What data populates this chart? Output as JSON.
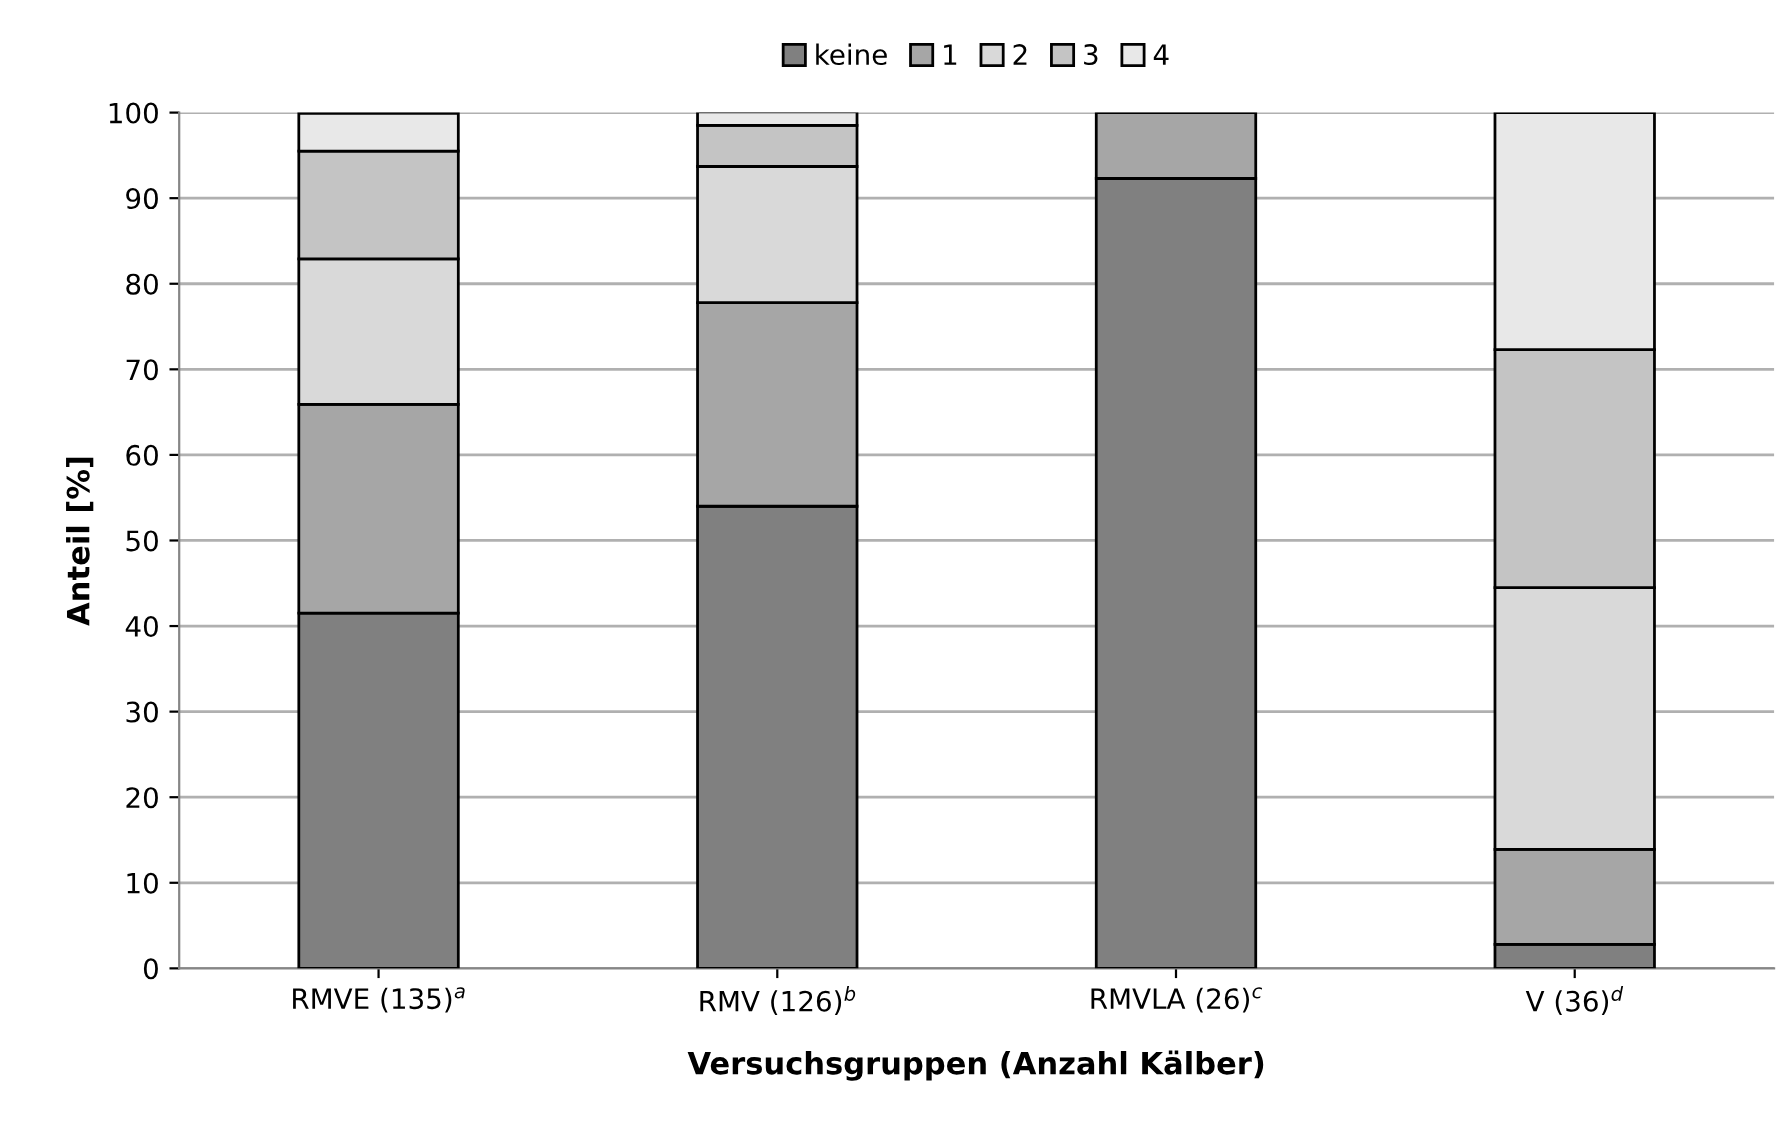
{
  "chart_data": {
    "type": "bar",
    "stacked": true,
    "xlabel": "Versuchsgruppen (Anzahl Kälber)",
    "ylabel": "Anteil [%]",
    "categories": [
      "RMVE (135)$^{a}$",
      "RMV (126)$^{b}$",
      "RMVLA (26)$^{c}$",
      "V (36)$^{d}$"
    ],
    "series": [
      {
        "name": "keine",
        "color": "#808080",
        "values": [
          41.5,
          54.0,
          92.3,
          2.8
        ]
      },
      {
        "name": "1",
        "color": "#a6a6a6",
        "values": [
          24.4,
          23.8,
          7.7,
          11.1
        ]
      },
      {
        "name": "2",
        "color": "#d9d9d9",
        "values": [
          17.0,
          15.9,
          null,
          30.6
        ]
      },
      {
        "name": "3",
        "color": "#c4c4c4",
        "values": [
          12.6,
          4.8,
          null,
          27.8
        ]
      },
      {
        "name": "4",
        "color": "#e8e8e8",
        "values": [
          4.4,
          1.6,
          null,
          27.7
        ]
      }
    ],
    "ylim": [
      0,
      100
    ],
    "yticks": [
      0,
      10,
      20,
      30,
      40,
      50,
      60,
      70,
      80,
      90,
      100
    ],
    "grid": "y",
    "legend": "top"
  }
}
